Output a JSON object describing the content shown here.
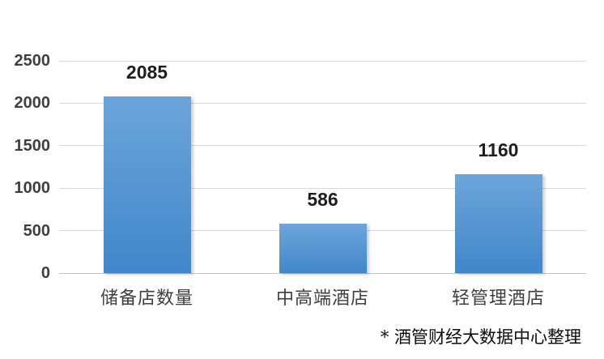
{
  "chart_data": {
    "type": "bar",
    "categories": [
      "储备店数量",
      "中高端酒店",
      "轻管理酒店"
    ],
    "values": [
      2085,
      586,
      1160
    ],
    "value_labels": [
      "2085",
      "586",
      "1160"
    ],
    "yticks": [
      0,
      500,
      1000,
      1500,
      2000,
      2500
    ],
    "ylim": [
      0,
      2500
    ],
    "title": "",
    "xlabel": "",
    "ylabel": "",
    "grid": true,
    "legend_position": "none",
    "colors": {
      "bar_top": "#6ca5da",
      "bar_bottom": "#4187ca",
      "gridline": "#d9d9d9",
      "baseline": "#c6c6c6",
      "axis_label": "#3f3f3f",
      "value_label": "#1f1f1f"
    }
  },
  "footnote": "* 酒管财经大数据中心整理"
}
